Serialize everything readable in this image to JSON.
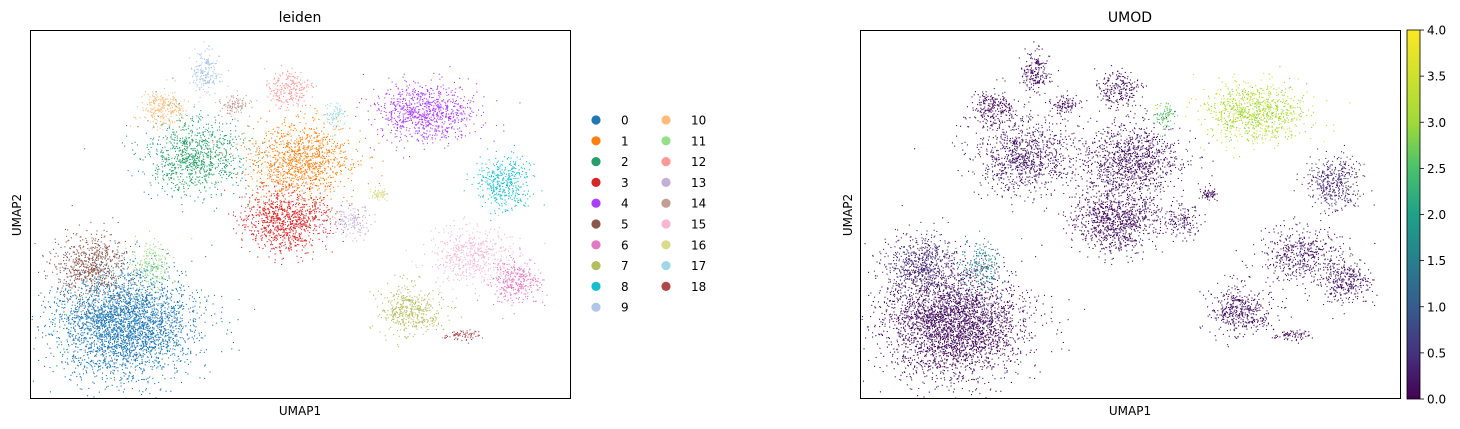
{
  "figure": {
    "panels": [
      {
        "title": "leiden",
        "xlabel": "UMAP1",
        "ylabel": "UMAP2"
      },
      {
        "title": "UMOD",
        "xlabel": "UMAP1",
        "ylabel": "UMAP2"
      }
    ]
  },
  "chart_data": [
    {
      "type": "scatter",
      "title": "leiden",
      "xlabel": "UMAP1",
      "ylabel": "UMAP2",
      "grid": false,
      "xticks": [],
      "yticks": [],
      "legend_position": "right, outside plot, 2 columns",
      "series": [
        {
          "name": "0",
          "color": "#1f77b4",
          "shape": "largest dense blob, bottom-left"
        },
        {
          "name": "1",
          "color": "#ff7f0e",
          "shape": "upper-middle cluster"
        },
        {
          "name": "2",
          "color": "#279e68",
          "shape": "upper-left cluster"
        },
        {
          "name": "3",
          "color": "#d62728",
          "shape": "center cluster"
        },
        {
          "name": "4",
          "color": "#aa40fc",
          "shape": "upper-right cluster"
        },
        {
          "name": "5",
          "color": "#8c564b",
          "shape": "left cluster above 0"
        },
        {
          "name": "6",
          "color": "#e377c2",
          "shape": "far-right cluster"
        },
        {
          "name": "7",
          "color": "#b5bd61",
          "shape": "lower-right cluster"
        },
        {
          "name": "8",
          "color": "#17becf",
          "shape": "right cluster"
        },
        {
          "name": "9",
          "color": "#aec7e8",
          "shape": "small top-left cluster"
        },
        {
          "name": "10",
          "color": "#ffbb78",
          "shape": "small top-left cluster"
        },
        {
          "name": "11",
          "color": "#98df8a",
          "shape": "small left cluster"
        },
        {
          "name": "12",
          "color": "#ff9896",
          "shape": "small top cluster"
        },
        {
          "name": "13",
          "color": "#c5b0d5",
          "shape": "small center cluster"
        },
        {
          "name": "14",
          "color": "#c49c94",
          "shape": "small top cluster"
        },
        {
          "name": "15",
          "color": "#f7b6d2",
          "shape": "right cluster"
        },
        {
          "name": "16",
          "color": "#dbdb8d",
          "shape": "small center cluster"
        },
        {
          "name": "17",
          "color": "#9edae5",
          "shape": "small top cluster"
        },
        {
          "name": "18",
          "color": "#ad494a",
          "shape": "small bottom-right cluster"
        }
      ]
    },
    {
      "type": "scatter",
      "title": "UMOD",
      "xlabel": "UMAP1",
      "ylabel": "UMAP2",
      "grid": false,
      "xticks": [],
      "yticks": [],
      "colormap": "viridis",
      "colorbar": {
        "range": [
          0.0,
          4.0
        ],
        "ticks": [
          0.0,
          0.5,
          1.0,
          1.5,
          2.0,
          2.5,
          3.0,
          3.5,
          4.0
        ],
        "tick_labels": [
          "0.0",
          "0.5",
          "1.0",
          "1.5",
          "2.0",
          "2.5",
          "3.0",
          "3.5",
          "4.0"
        ]
      },
      "note_expression": "high expression (~3.0–3.5) in upper-right cluster; moderate in small upper-center region; near 0 elsewhere"
    }
  ]
}
